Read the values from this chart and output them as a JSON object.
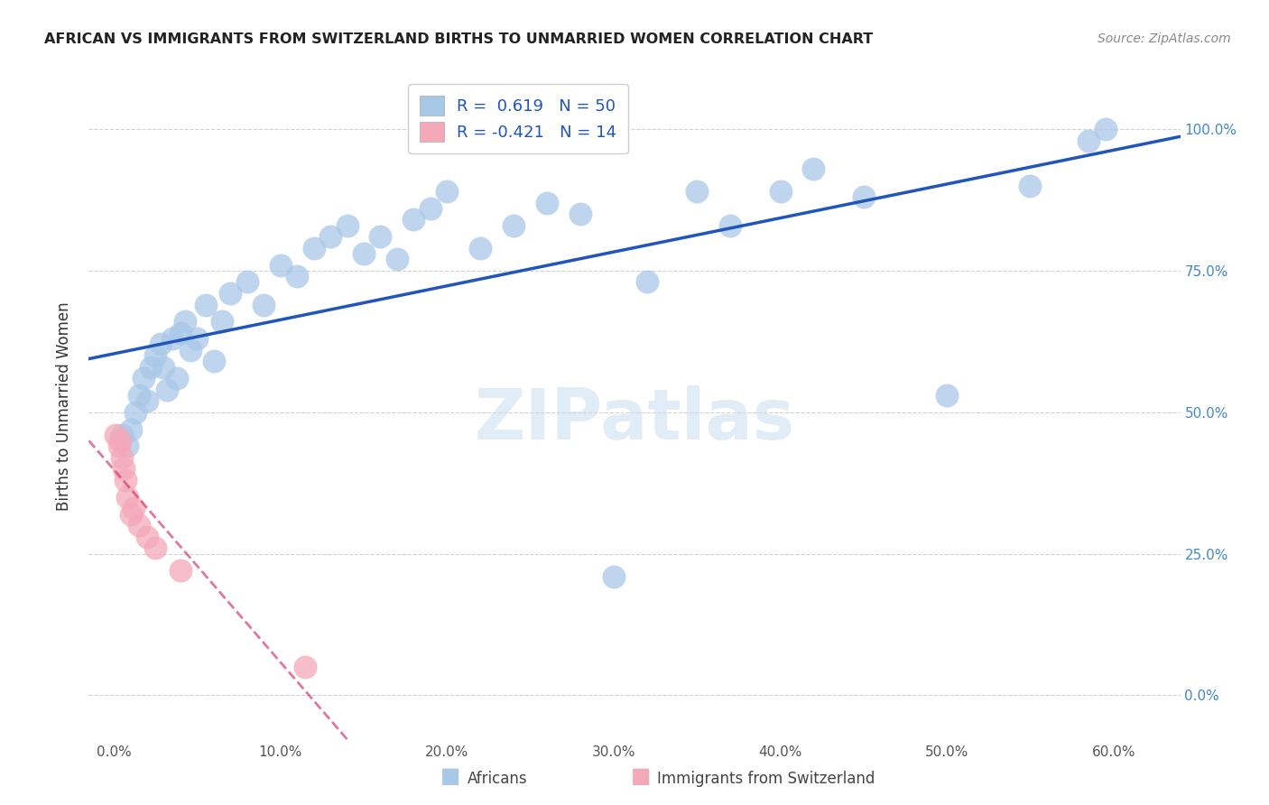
{
  "title": "AFRICAN VS IMMIGRANTS FROM SWITZERLAND BIRTHS TO UNMARRIED WOMEN CORRELATION CHART",
  "source": "Source: ZipAtlas.com",
  "ylabel": "Births to Unmarried Women",
  "x_ticks": [
    0.0,
    10.0,
    20.0,
    30.0,
    40.0,
    50.0,
    60.0
  ],
  "x_tick_labels": [
    "0.0%",
    "10.0%",
    "20.0%",
    "30.0%",
    "40.0%",
    "50.0%",
    "60.0%"
  ],
  "y_ticks": [
    0.0,
    25.0,
    50.0,
    75.0,
    100.0
  ],
  "y_tick_labels": [
    "0.0%",
    "25.0%",
    "50.0%",
    "75.0%",
    "100.0%"
  ],
  "xlim": [
    -1.5,
    64
  ],
  "ylim": [
    -8,
    110
  ],
  "africans_R": "0.619",
  "africans_N": "50",
  "swiss_R": "-0.421",
  "swiss_N": "14",
  "blue_marker_color": "#a8c8e8",
  "blue_line_color": "#2255bb",
  "pink_marker_color": "#f4a8b8",
  "pink_line_color": "#cc3366",
  "watermark": "ZIPatlas",
  "legend_R_color": "#2255bb",
  "tick_color": "#555555",
  "right_tick_color": "#4488cc",
  "title_color": "#222222",
  "source_color": "#888888",
  "grid_color": "#cccccc",
  "africans_x": [
    0.5,
    0.8,
    1.0,
    1.3,
    1.5,
    1.8,
    2.0,
    2.2,
    2.5,
    2.8,
    3.0,
    3.2,
    3.5,
    3.8,
    4.0,
    4.3,
    4.6,
    5.0,
    5.5,
    6.0,
    6.5,
    7.0,
    8.0,
    9.0,
    10.0,
    11.0,
    12.0,
    13.0,
    14.0,
    15.0,
    16.0,
    17.0,
    18.0,
    19.0,
    20.0,
    22.0,
    24.0,
    26.0,
    28.0,
    30.0,
    32.0,
    35.0,
    37.0,
    40.0,
    42.0,
    45.0,
    50.0,
    55.0,
    58.5,
    59.5
  ],
  "africans_y": [
    46,
    44,
    47,
    50,
    53,
    56,
    52,
    58,
    60,
    62,
    58,
    54,
    63,
    56,
    64,
    66,
    61,
    63,
    69,
    59,
    66,
    71,
    73,
    69,
    76,
    74,
    79,
    81,
    83,
    78,
    81,
    77,
    84,
    86,
    89,
    79,
    83,
    87,
    85,
    21,
    73,
    89,
    83,
    89,
    93,
    88,
    53,
    90,
    98,
    100
  ],
  "swiss_x": [
    0.1,
    0.3,
    0.4,
    0.5,
    0.6,
    0.7,
    0.8,
    1.0,
    1.2,
    1.5,
    2.0,
    2.5,
    4.0,
    11.5
  ],
  "swiss_y": [
    46,
    44,
    45,
    42,
    40,
    38,
    35,
    32,
    33,
    30,
    28,
    26,
    22,
    5
  ]
}
